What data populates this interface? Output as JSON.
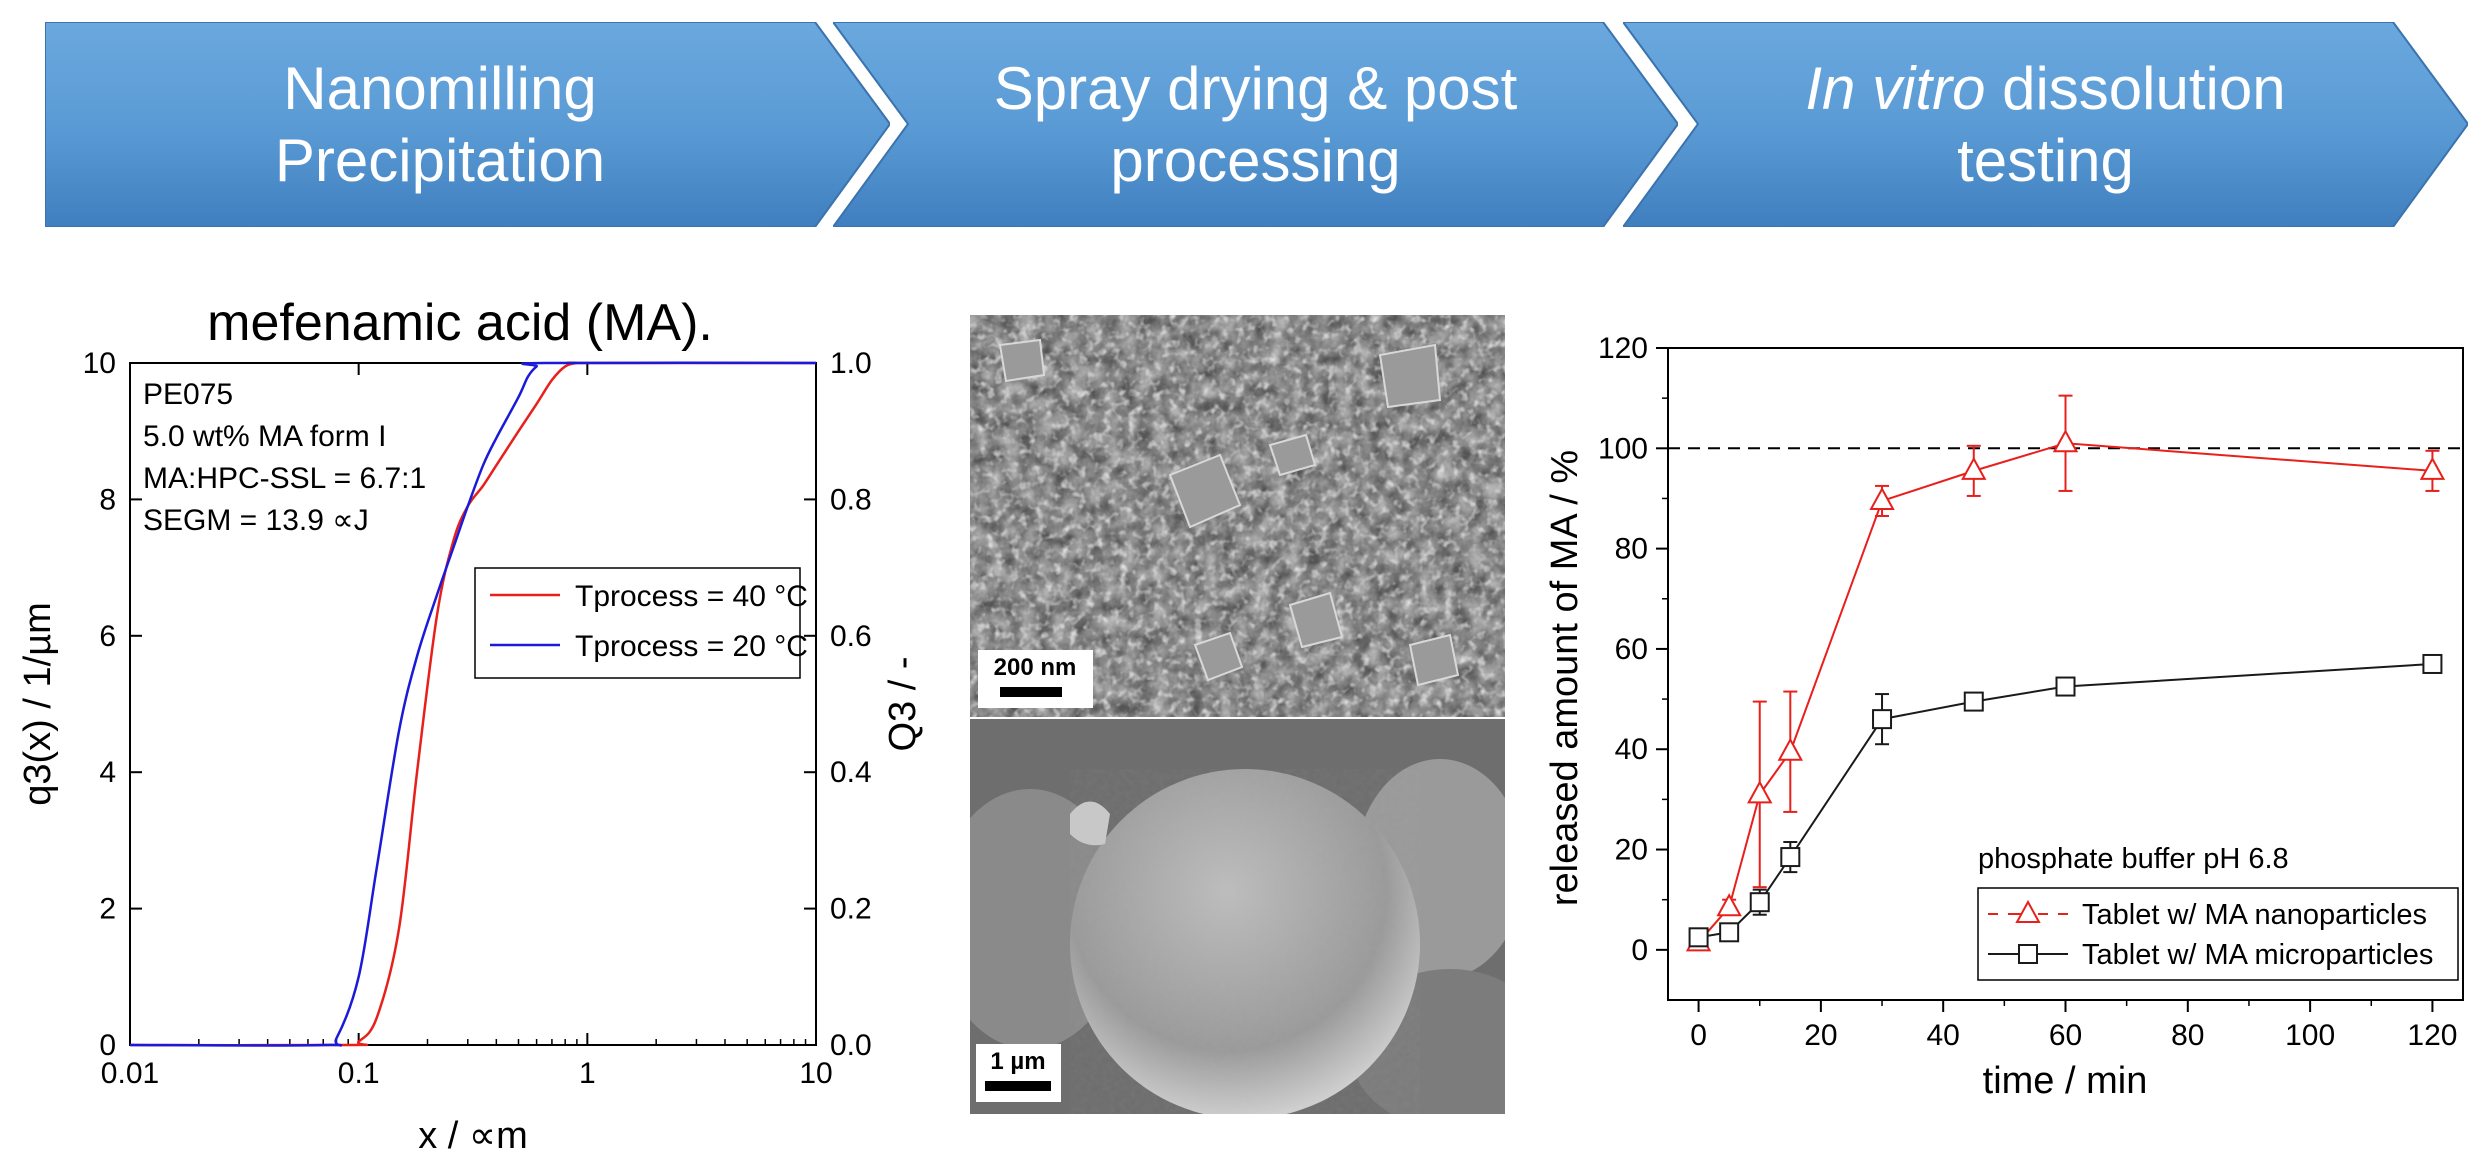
{
  "process_steps": [
    {
      "line1": "Nanomilling",
      "line2": "Precipitation",
      "line1_italic": ""
    },
    {
      "line1": "Spray drying & post",
      "line2": "processing",
      "line1_italic": ""
    },
    {
      "line1": " dissolution",
      "line2": "testing",
      "line1_italic": "In vitro"
    }
  ],
  "colors": {
    "arrow_fill": "#5b9bd5",
    "arrow_fill_dark": "#4a86c0",
    "series_red": "#e8201c",
    "series_blue": "#1a1ad8",
    "series_black": "#1a1a1a"
  },
  "left_chart_title": "mefenamic acid (MA).",
  "sem_scale_bars": {
    "top": "200 nm",
    "bottom": "1 µm"
  },
  "chart_data": [
    {
      "type": "line",
      "title": "mefenamic acid (MA).",
      "xlabel": "x / ∝m",
      "ylabel": "q3(x) / 1/µm",
      "y2label": "Q3 / -",
      "x_scale": "log",
      "xlim": [
        0.01,
        10
      ],
      "ylim": [
        0,
        10
      ],
      "y2lim": [
        0,
        1.0
      ],
      "x_ticks": [
        "0.01",
        "0.1",
        "1",
        "10"
      ],
      "y_ticks": [
        "0",
        "2",
        "4",
        "6",
        "8",
        "10"
      ],
      "y2_ticks": [
        "0.0",
        "0.2",
        "0.4",
        "0.6",
        "0.8",
        "1.0"
      ],
      "annotations": [
        "PE075",
        "5.0 wt% MA form I",
        "MA:HPC-SSL = 6.7:1",
        "SEGM = 13.9 ∝J"
      ],
      "legend_position": "middle-right",
      "series": [
        {
          "name": "Tprocess = 40 °C",
          "axis": "Q3",
          "x": [
            0.01,
            0.09,
            0.1,
            0.12,
            0.15,
            0.18,
            0.22,
            0.26,
            0.3,
            0.35,
            0.4,
            0.5,
            0.6,
            0.7,
            0.8,
            0.9,
            1.0,
            10
          ],
          "y": [
            0.0,
            0.0,
            0.005,
            0.04,
            0.17,
            0.4,
            0.63,
            0.74,
            0.79,
            0.82,
            0.85,
            0.9,
            0.94,
            0.975,
            0.995,
            1.0,
            1.0,
            1.0
          ]
        },
        {
          "name": "Tprocess = 20 °C",
          "axis": "Q3",
          "x": [
            0.01,
            0.07,
            0.08,
            0.1,
            0.12,
            0.15,
            0.18,
            0.22,
            0.26,
            0.3,
            0.35,
            0.4,
            0.5,
            0.55,
            0.6,
            0.65,
            10
          ],
          "y": [
            0.0,
            0.0,
            0.01,
            0.1,
            0.26,
            0.46,
            0.57,
            0.66,
            0.73,
            0.79,
            0.85,
            0.89,
            0.95,
            0.98,
            0.995,
            1.0,
            1.0
          ]
        }
      ]
    },
    {
      "type": "line",
      "xlabel": "time / min",
      "ylabel": "released amount of MA / %",
      "xlim": [
        -5,
        125
      ],
      "ylim": [
        -10,
        120
      ],
      "x_ticks": [
        "0",
        "20",
        "40",
        "60",
        "80",
        "100",
        "120"
      ],
      "y_ticks": [
        "0",
        "20",
        "40",
        "60",
        "80",
        "100",
        "120"
      ],
      "reference_line": 100,
      "annotation": "phosphate buffer pH 6.8",
      "legend_position": "bottom-right",
      "series": [
        {
          "name": "Tablet w/ MA nanoparticles",
          "marker": "triangle",
          "x": [
            0,
            5,
            10,
            15,
            30,
            45,
            60,
            120
          ],
          "y": [
            1.5,
            8.5,
            31,
            39.5,
            89.5,
            95.5,
            101,
            95.5
          ],
          "err": [
            1,
            1.5,
            18.5,
            12,
            3,
            5,
            9.5,
            4
          ]
        },
        {
          "name": "Tablet w/ MA microparticles",
          "marker": "square",
          "x": [
            0,
            5,
            10,
            15,
            30,
            45,
            60,
            120
          ],
          "y": [
            2.5,
            3.5,
            9.5,
            18.5,
            46,
            49.5,
            52.5,
            57
          ],
          "err": [
            1.5,
            1,
            2.5,
            3,
            5,
            1.5,
            1,
            1.5
          ]
        }
      ]
    }
  ]
}
